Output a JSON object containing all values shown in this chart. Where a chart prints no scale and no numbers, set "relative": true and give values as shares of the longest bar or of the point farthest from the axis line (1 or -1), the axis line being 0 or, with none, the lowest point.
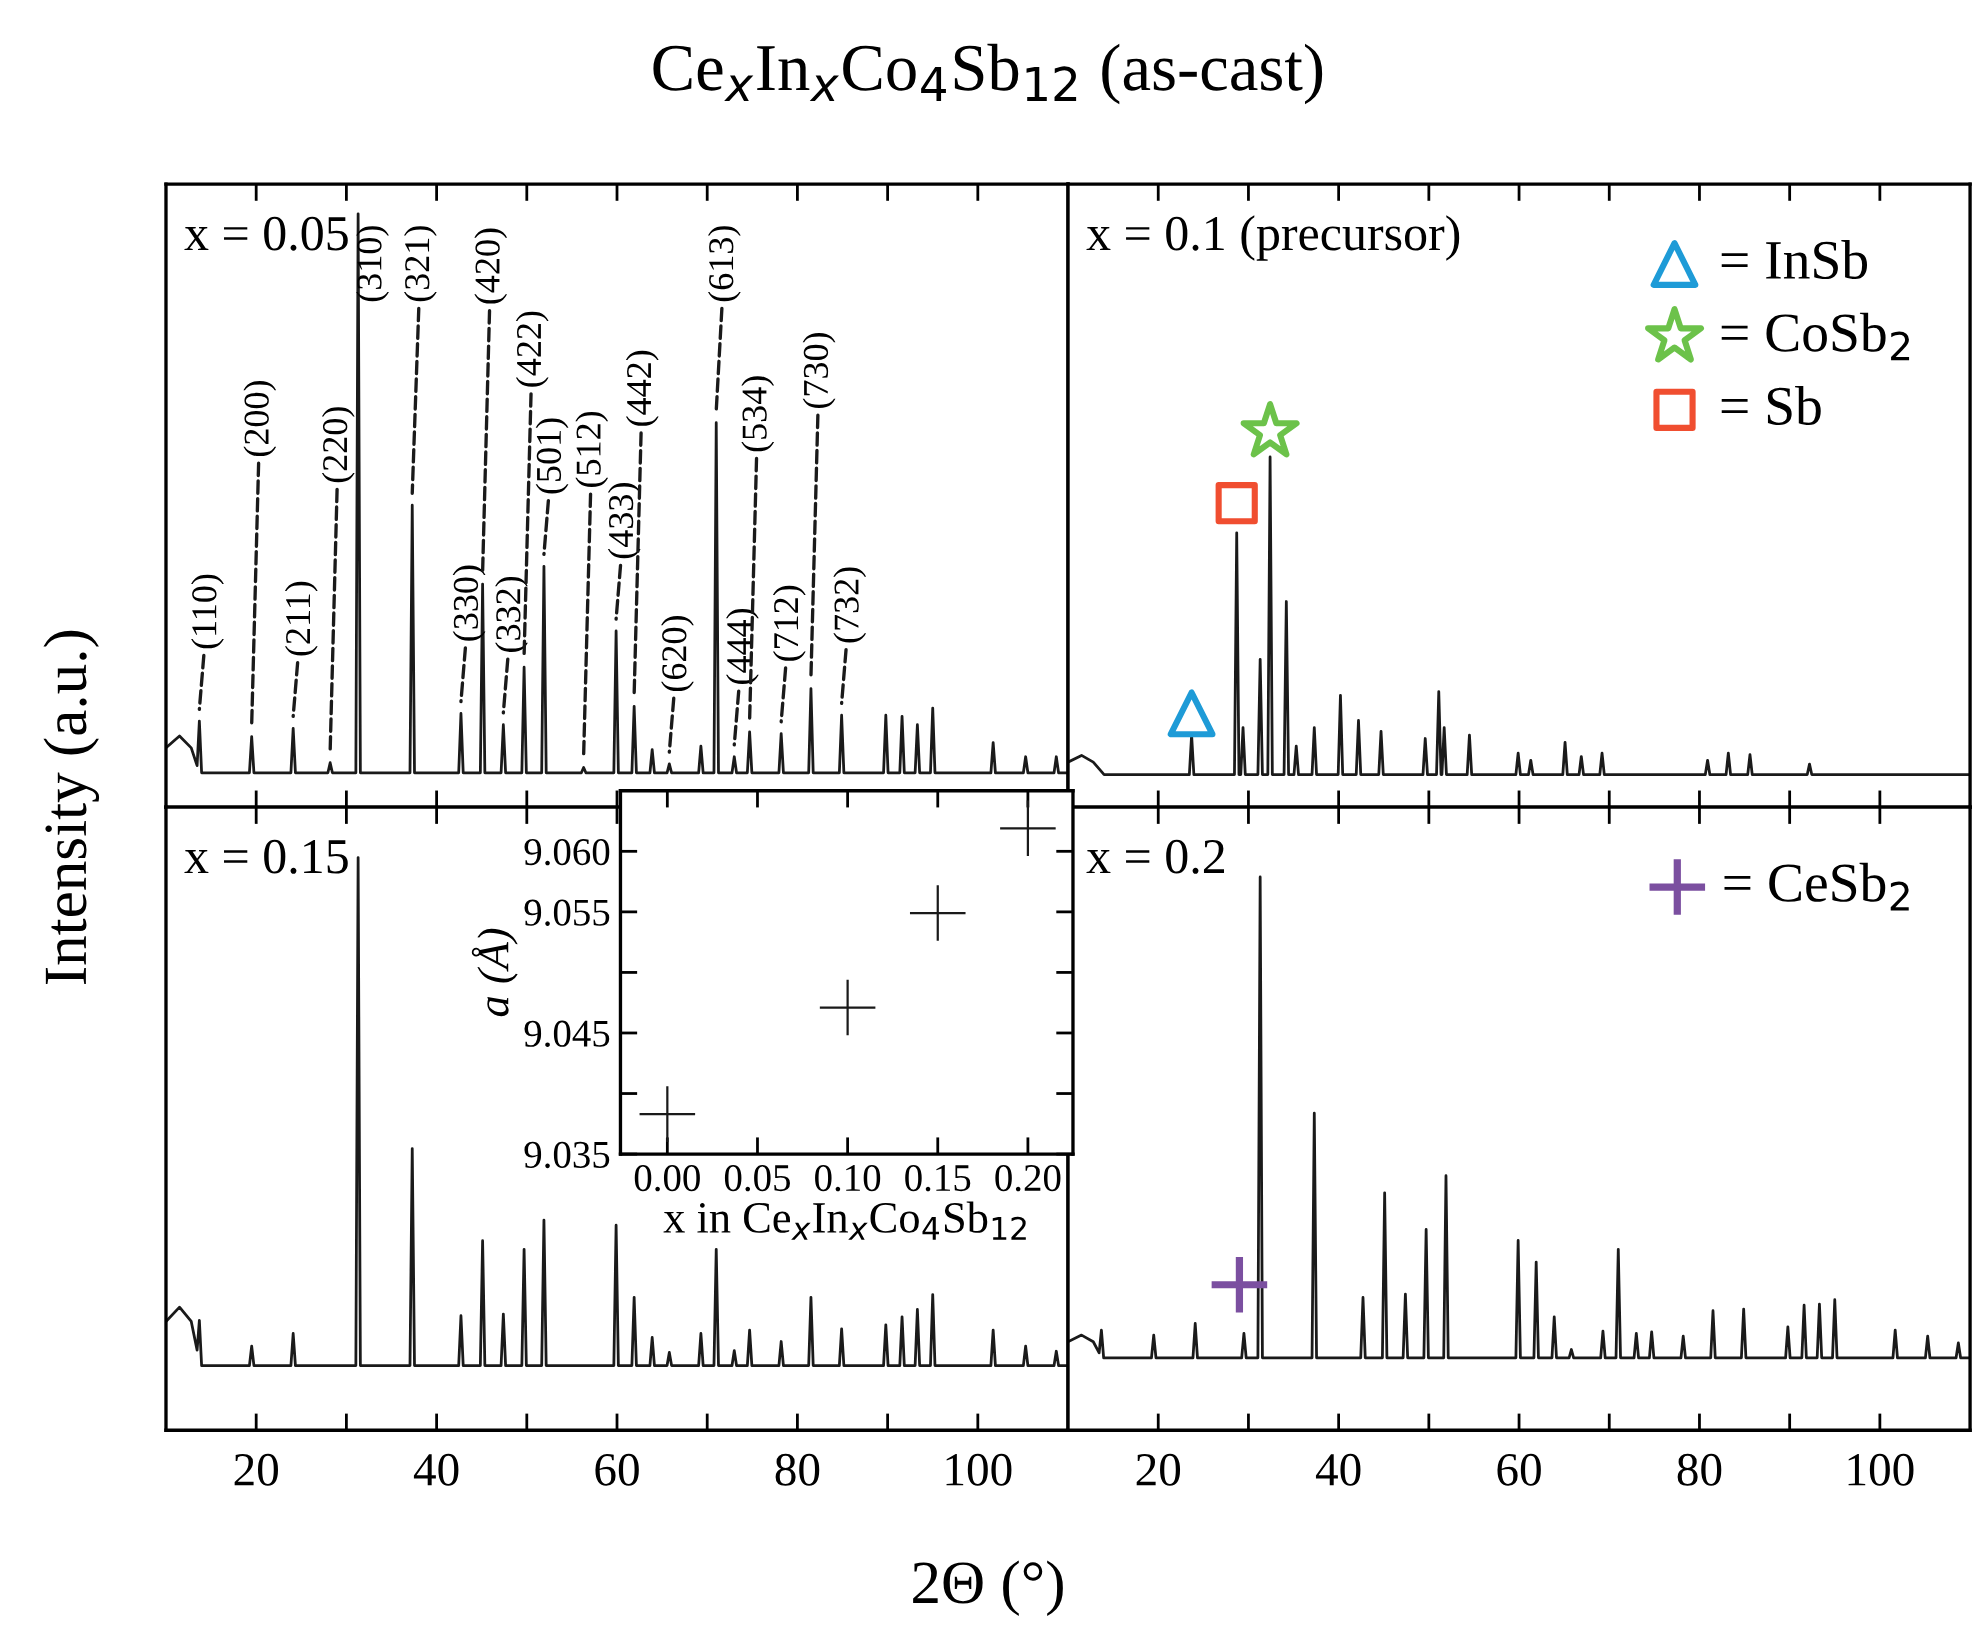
{
  "chart_data": [
    {
      "type": "line",
      "title": "Ce$_{x}$In$_{x}$Co$_{4}$Sb$_{12}$ (as-cast)",
      "ylabel": "Intensity (a.u.)",
      "relative": true,
      "tick_labels": false,
      "grid": false,
      "xlim": [
        10,
        110
      ],
      "xticks": [
        {
          "value": 20,
          "label": null
        },
        {
          "value": 30,
          "label": null
        },
        {
          "value": 40,
          "label": null
        },
        {
          "value": 50,
          "label": null
        },
        {
          "value": 60,
          "label": null
        },
        {
          "value": 70,
          "label": null
        },
        {
          "value": 80,
          "label": null
        },
        {
          "value": 90,
          "label": null
        },
        {
          "value": 100,
          "label": null
        }
      ],
      "series": [
        {
          "type": "line",
          "color": "#1a1a1a",
          "x": [
            10,
            11.5,
            12.8,
            13.45,
            13.7,
            13.95,
            19.25,
            19.5,
            19.75,
            23.85,
            24.1,
            24.35,
            27.95,
            28.2,
            28.45,
            31.05,
            31.3,
            31.55,
            37.05,
            37.3,
            37.55,
            42.45,
            42.7,
            42.95,
            44.85,
            45.1,
            45.35,
            47.15,
            47.4,
            47.65,
            49.45,
            49.7,
            49.95,
            51.65,
            51.9,
            52.15,
            56.05,
            56.3,
            56.55,
            59.65,
            59.9,
            60.15,
            61.65,
            61.9,
            62.15,
            63.65,
            63.9,
            64.15,
            65.55,
            65.8,
            66.05,
            69.05,
            69.3,
            69.55,
            70.75,
            71.0,
            71.25,
            72.75,
            73.0,
            73.25,
            74.45,
            74.7,
            74.95,
            77.95,
            78.2,
            78.45,
            81.25,
            81.5,
            81.75,
            84.65,
            84.9,
            85.15,
            89.55,
            89.8,
            90.05,
            91.35,
            91.6,
            91.85,
            93.05,
            93.3,
            93.55,
            94.75,
            95.0,
            95.25,
            101.45,
            101.7,
            101.95,
            105.05,
            105.3,
            105.55,
            108.45,
            108.7,
            108.95,
            110
          ],
          "values": [
            0.1,
            0.12,
            0.1,
            0.07,
            0.145,
            0.058,
            0.058,
            0.119,
            0.058,
            0.058,
            0.133,
            0.058,
            0.058,
            0.075,
            0.058,
            0.058,
            1,
            0.058,
            0.058,
            0.509,
            0.058,
            0.058,
            0.158,
            0.058,
            0.058,
            0.376,
            0.058,
            0.058,
            0.139,
            0.058,
            0.058,
            0.236,
            0.058,
            0.058,
            0.406,
            0.058,
            0.058,
            0.067,
            0.058,
            0.058,
            0.297,
            0.058,
            0.058,
            0.17,
            0.058,
            0.058,
            0.097,
            0.058,
            0.058,
            0.073,
            0.058,
            0.058,
            0.103,
            0.058,
            0.058,
            0.648,
            0.058,
            0.058,
            0.085,
            0.058,
            0.058,
            0.127,
            0.058,
            0.058,
            0.124,
            0.058,
            0.058,
            0.2,
            0.058,
            0.058,
            0.155,
            0.058,
            0.058,
            0.155,
            0.058,
            0.058,
            0.153,
            0.058,
            0.058,
            0.139,
            0.058,
            0.058,
            0.167,
            0.058,
            0.058,
            0.109,
            0.058,
            0.058,
            0.085,
            0.058,
            0.058,
            0.085,
            0.058,
            0.058
          ]
        }
      ],
      "annotations": [
        "x = 0.05",
        {
          "text": "(110)",
          "x": 13.7,
          "y": 0.145
        },
        {
          "text": "(200)",
          "x": 19.5,
          "y": 0.119
        },
        {
          "text": "(211)",
          "x": 24.1,
          "y": 0.133
        },
        {
          "text": "(220)",
          "x": 28.2,
          "y": 0.075
        },
        {
          "text": "(310)",
          "x": 31.3,
          "y": 1
        },
        {
          "text": "(321)",
          "x": 37.3,
          "y": 0.509
        },
        {
          "text": "(330)",
          "x": 42.7,
          "y": 0.158
        },
        {
          "text": "(420)",
          "x": 45.1,
          "y": 0.376
        },
        {
          "text": "(332)",
          "x": 47.4,
          "y": 0.139
        },
        {
          "text": "(422)",
          "x": 49.7,
          "y": 0.236
        },
        {
          "text": "(501)",
          "x": 51.9,
          "y": 0.406
        },
        {
          "text": "(512)",
          "x": 56.3,
          "y": 0.067
        },
        {
          "text": "(433)",
          "x": 59.9,
          "y": 0.297
        },
        {
          "text": "(442)",
          "x": 61.9,
          "y": 0.17
        },
        {
          "text": "(620)",
          "x": 65.8,
          "y": 0.073
        },
        {
          "text": "(613)",
          "x": 71.0,
          "y": 0.648
        },
        {
          "text": "(444)",
          "x": 73.0,
          "y": 0.085
        },
        {
          "text": "(534)",
          "x": 74.7,
          "y": 0.127
        },
        {
          "text": "(712)",
          "x": 78.2,
          "y": 0.124
        },
        {
          "text": "(730)",
          "x": 81.5,
          "y": 0.2
        },
        {
          "text": "(732)",
          "x": 84.9,
          "y": 0.155
        }
      ]
    },
    {
      "type": "line",
      "relative": true,
      "tick_labels": false,
      "grid": false,
      "legend": "top right",
      "xlim": [
        10,
        110
      ],
      "xticks": [
        {
          "value": 20,
          "label": null
        },
        {
          "value": 30,
          "label": null
        },
        {
          "value": 40,
          "label": null
        },
        {
          "value": 50,
          "label": null
        },
        {
          "value": 60,
          "label": null
        },
        {
          "value": 70,
          "label": null
        },
        {
          "value": 80,
          "label": null
        },
        {
          "value": 90,
          "label": null
        },
        {
          "value": 100,
          "label": null
        }
      ],
      "series": [
        {
          "type": "line",
          "color": "#1a1a1a",
          "x": [
            10,
            11.5,
            12.8,
            14,
            23.45,
            23.7,
            23.95,
            28.45,
            28.7,
            28.95,
            29.15,
            29.4,
            29.65,
            31.05,
            31.3,
            31.55,
            32.15,
            32.4,
            32.65,
            33.95,
            34.2,
            34.45,
            35.05,
            35.3,
            35.55,
            37.05,
            37.3,
            37.55,
            39.95,
            40.2,
            40.45,
            41.95,
            42.2,
            42.45,
            44.45,
            44.7,
            44.95,
            49.35,
            49.6,
            49.85,
            50.85,
            51.1,
            51.35,
            51.45,
            51.7,
            51.95,
            54.25,
            54.5,
            54.75,
            59.65,
            59.9,
            60.15,
            61.05,
            61.3,
            61.55,
            64.85,
            65.1,
            65.35,
            66.65,
            66.9,
            67.15,
            68.95,
            69.2,
            69.45,
            80.65,
            80.9,
            81.15,
            82.95,
            83.2,
            83.45,
            85.35,
            85.6,
            85.85,
            91.95,
            92.2,
            92.45,
            110
          ],
          "values": [
            0.12,
            0.138,
            0.12,
            0.087,
            0.087,
            0.192,
            0.087,
            0.087,
            0.731,
            0.087,
            0.087,
            0.212,
            0.087,
            0.087,
            0.394,
            0.087,
            0.087,
            0.933,
            0.087,
            0.087,
            0.548,
            0.087,
            0.087,
            0.163,
            0.087,
            0.087,
            0.212,
            0.087,
            0.087,
            0.298,
            0.087,
            0.087,
            0.231,
            0.087,
            0.087,
            0.202,
            0.087,
            0.087,
            0.183,
            0.087,
            0.087,
            0.308,
            0.087,
            0.087,
            0.212,
            0.087,
            0.087,
            0.192,
            0.087,
            0.087,
            0.144,
            0.087,
            0.087,
            0.125,
            0.087,
            0.087,
            0.173,
            0.087,
            0.087,
            0.135,
            0.087,
            0.087,
            0.144,
            0.087,
            0.087,
            0.125,
            0.087,
            0.087,
            0.144,
            0.087,
            0.087,
            0.14,
            0.087,
            0.087,
            0.115,
            0.087,
            0.087
          ]
        },
        {
          "type": "scatter",
          "name": "= InSb",
          "marker": "triangle",
          "color": "#1e9bd7",
          "x": [
            23.7
          ],
          "values": [
            0.25
          ]
        },
        {
          "type": "scatter",
          "name": "= CoSb$_{2}$",
          "marker": "star",
          "color": "#6cc24a",
          "x": [
            32.4
          ],
          "values": [
            1
          ]
        },
        {
          "type": "scatter",
          "name": "= Sb",
          "marker": "square",
          "color": "#f04e30",
          "x": [
            28.7
          ],
          "values": [
            0.81
          ]
        }
      ],
      "annotations": [
        "x = 0.1 (precursor)"
      ]
    },
    {
      "type": "line",
      "xlabel": "2Θ (°)",
      "relative": true,
      "tick_labels": "x",
      "grid": false,
      "xlim": [
        10,
        110
      ],
      "xticks": [
        20,
        {
          "value": 30,
          "label": null
        },
        40,
        {
          "value": 50,
          "label": null
        },
        60,
        {
          "value": 70,
          "label": null
        },
        80,
        {
          "value": 90,
          "label": null
        },
        100
      ],
      "series": [
        {
          "type": "line",
          "color": "#1a1a1a",
          "x": [
            10,
            11.5,
            12.8,
            13.45,
            13.7,
            13.95,
            19.25,
            19.5,
            19.75,
            23.85,
            24.1,
            24.35,
            31.05,
            31.3,
            31.55,
            37.05,
            37.3,
            37.55,
            42.45,
            42.7,
            42.95,
            44.85,
            45.1,
            45.35,
            47.15,
            47.4,
            47.65,
            49.45,
            49.7,
            49.95,
            51.65,
            51.9,
            52.15,
            59.65,
            59.9,
            60.15,
            61.65,
            61.9,
            62.15,
            63.65,
            63.9,
            64.15,
            65.55,
            65.8,
            66.05,
            69.05,
            69.3,
            69.55,
            70.75,
            71.0,
            71.25,
            72.75,
            73.0,
            73.25,
            74.45,
            74.7,
            74.95,
            77.95,
            78.2,
            78.45,
            81.25,
            81.5,
            81.75,
            84.65,
            84.9,
            85.15,
            89.55,
            89.8,
            90.05,
            91.35,
            91.6,
            91.85,
            93.05,
            93.3,
            93.55,
            94.75,
            95.0,
            95.25,
            101.45,
            101.7,
            101.95,
            105.05,
            105.3,
            105.55,
            108.45,
            108.7,
            108.95,
            110
          ],
          "values": [
            0.19,
            0.215,
            0.19,
            0.14,
            0.192,
            0.113,
            0.113,
            0.147,
            0.113,
            0.113,
            0.169,
            0.113,
            0.113,
            1,
            0.113,
            0.113,
            0.492,
            0.113,
            0.113,
            0.2,
            0.113,
            0.113,
            0.331,
            0.113,
            0.113,
            0.203,
            0.113,
            0.113,
            0.316,
            0.113,
            0.113,
            0.367,
            0.113,
            0.113,
            0.358,
            0.113,
            0.113,
            0.232,
            0.113,
            0.113,
            0.162,
            0.113,
            0.113,
            0.136,
            0.113,
            0.113,
            0.169,
            0.113,
            0.113,
            0.316,
            0.113,
            0.113,
            0.139,
            0.113,
            0.113,
            0.175,
            0.113,
            0.113,
            0.155,
            0.113,
            0.113,
            0.232,
            0.113,
            0.113,
            0.177,
            0.113,
            0.113,
            0.184,
            0.113,
            0.113,
            0.198,
            0.113,
            0.113,
            0.211,
            0.113,
            0.113,
            0.237,
            0.113,
            0.113,
            0.175,
            0.113,
            0.113,
            0.147,
            0.113,
            0.113,
            0.138,
            0.113,
            0.113
          ]
        }
      ],
      "annotations": [
        "x = 0.15"
      ]
    },
    {
      "type": "line",
      "relative": true,
      "tick_labels": "x",
      "grid": false,
      "legend": "top right",
      "xlim": [
        10,
        110
      ],
      "xticks": [
        20,
        {
          "value": 30,
          "label": null
        },
        40,
        {
          "value": 50,
          "label": null
        },
        60,
        {
          "value": 70,
          "label": null
        },
        80,
        {
          "value": 90,
          "label": null
        },
        100
      ],
      "series": [
        {
          "type": "line",
          "color": "#1a1a1a",
          "x": [
            10,
            11.5,
            12.8,
            13.45,
            13.7,
            13.95,
            19.25,
            19.5,
            19.75,
            23.85,
            24.1,
            24.35,
            29.25,
            29.5,
            29.75,
            31.05,
            31.3,
            31.55,
            37.05,
            37.3,
            37.55,
            42.45,
            42.7,
            42.95,
            44.85,
            45.1,
            45.35,
            47.15,
            47.4,
            47.65,
            49.45,
            49.7,
            49.95,
            51.65,
            51.9,
            52.15,
            59.65,
            59.9,
            60.15,
            61.65,
            61.9,
            62.15,
            63.65,
            63.9,
            64.15,
            65.55,
            65.8,
            66.05,
            69.05,
            69.3,
            69.55,
            70.75,
            71.0,
            71.25,
            72.75,
            73.0,
            73.25,
            74.45,
            74.7,
            74.95,
            77.95,
            78.2,
            78.45,
            81.25,
            81.5,
            81.75,
            84.65,
            84.9,
            85.15,
            89.55,
            89.8,
            90.05,
            91.35,
            91.6,
            91.85,
            93.05,
            93.3,
            93.55,
            94.75,
            95.0,
            95.25,
            101.45,
            101.7,
            101.95,
            105.05,
            105.3,
            105.55,
            108.45,
            108.7,
            108.95,
            110
          ],
          "values": [
            0.16,
            0.172,
            0.16,
            0.14,
            0.181,
            0.131,
            0.131,
            0.172,
            0.131,
            0.131,
            0.193,
            0.131,
            0.131,
            0.175,
            0.131,
            0.131,
            1,
            0.131,
            0.131,
            0.573,
            0.131,
            0.131,
            0.24,
            0.131,
            0.131,
            0.429,
            0.131,
            0.131,
            0.246,
            0.131,
            0.131,
            0.363,
            0.131,
            0.131,
            0.46,
            0.131,
            0.131,
            0.343,
            0.131,
            0.131,
            0.304,
            0.131,
            0.131,
            0.205,
            0.131,
            0.131,
            0.146,
            0.131,
            0.131,
            0.179,
            0.131,
            0.131,
            0.327,
            0.131,
            0.131,
            0.175,
            0.131,
            0.131,
            0.178,
            0.131,
            0.131,
            0.17,
            0.131,
            0.131,
            0.216,
            0.131,
            0.131,
            0.219,
            0.131,
            0.131,
            0.187,
            0.131,
            0.131,
            0.226,
            0.131,
            0.131,
            0.228,
            0.131,
            0.131,
            0.236,
            0.131,
            0.131,
            0.181,
            0.131,
            0.131,
            0.17,
            0.131,
            0.131,
            0.158,
            0.131,
            0.131
          ]
        },
        {
          "type": "scatter",
          "name": "= CeSb$_{2}$",
          "marker": "cross",
          "color": "#7b4fa0",
          "x": [
            29.0
          ],
          "values": [
            0.263
          ]
        }
      ],
      "annotations": [
        "x = 0.2"
      ]
    },
    {
      "type": "scatter",
      "xlabel": "x in Ce$_{x}$In$_{x}$Co$_{4}$Sb$_{12}$",
      "ylabel": "a (Å)",
      "grid": false,
      "marker": "cross",
      "xlim": [
        -0.026,
        0.225
      ],
      "xticks": [
        {
          "value": 0,
          "label": "0.00"
        },
        {
          "value": 0.05,
          "label": "0.05"
        },
        {
          "value": 0.1,
          "label": "0.10"
        },
        {
          "value": 0.15,
          "label": "0.15"
        },
        {
          "value": 0.2,
          "label": "0.20"
        }
      ],
      "ylim": [
        9.035,
        9.065
      ],
      "yticks": [
        {
          "value": 9.035,
          "label": "9.035"
        },
        {
          "value": 9.04,
          "label": null
        },
        {
          "value": 9.045,
          "label": "9.045"
        },
        {
          "value": 9.05,
          "label": null
        },
        {
          "value": 9.055,
          "label": "9.055"
        },
        {
          "value": 9.06,
          "label": "9.060"
        }
      ],
      "series": [
        {
          "color": "#1a1a1a",
          "x": [
            0,
            0.1,
            0.15,
            0.2
          ],
          "values": [
            9.0383,
            9.0471,
            9.0549,
            9.0619
          ]
        }
      ]
    }
  ]
}
